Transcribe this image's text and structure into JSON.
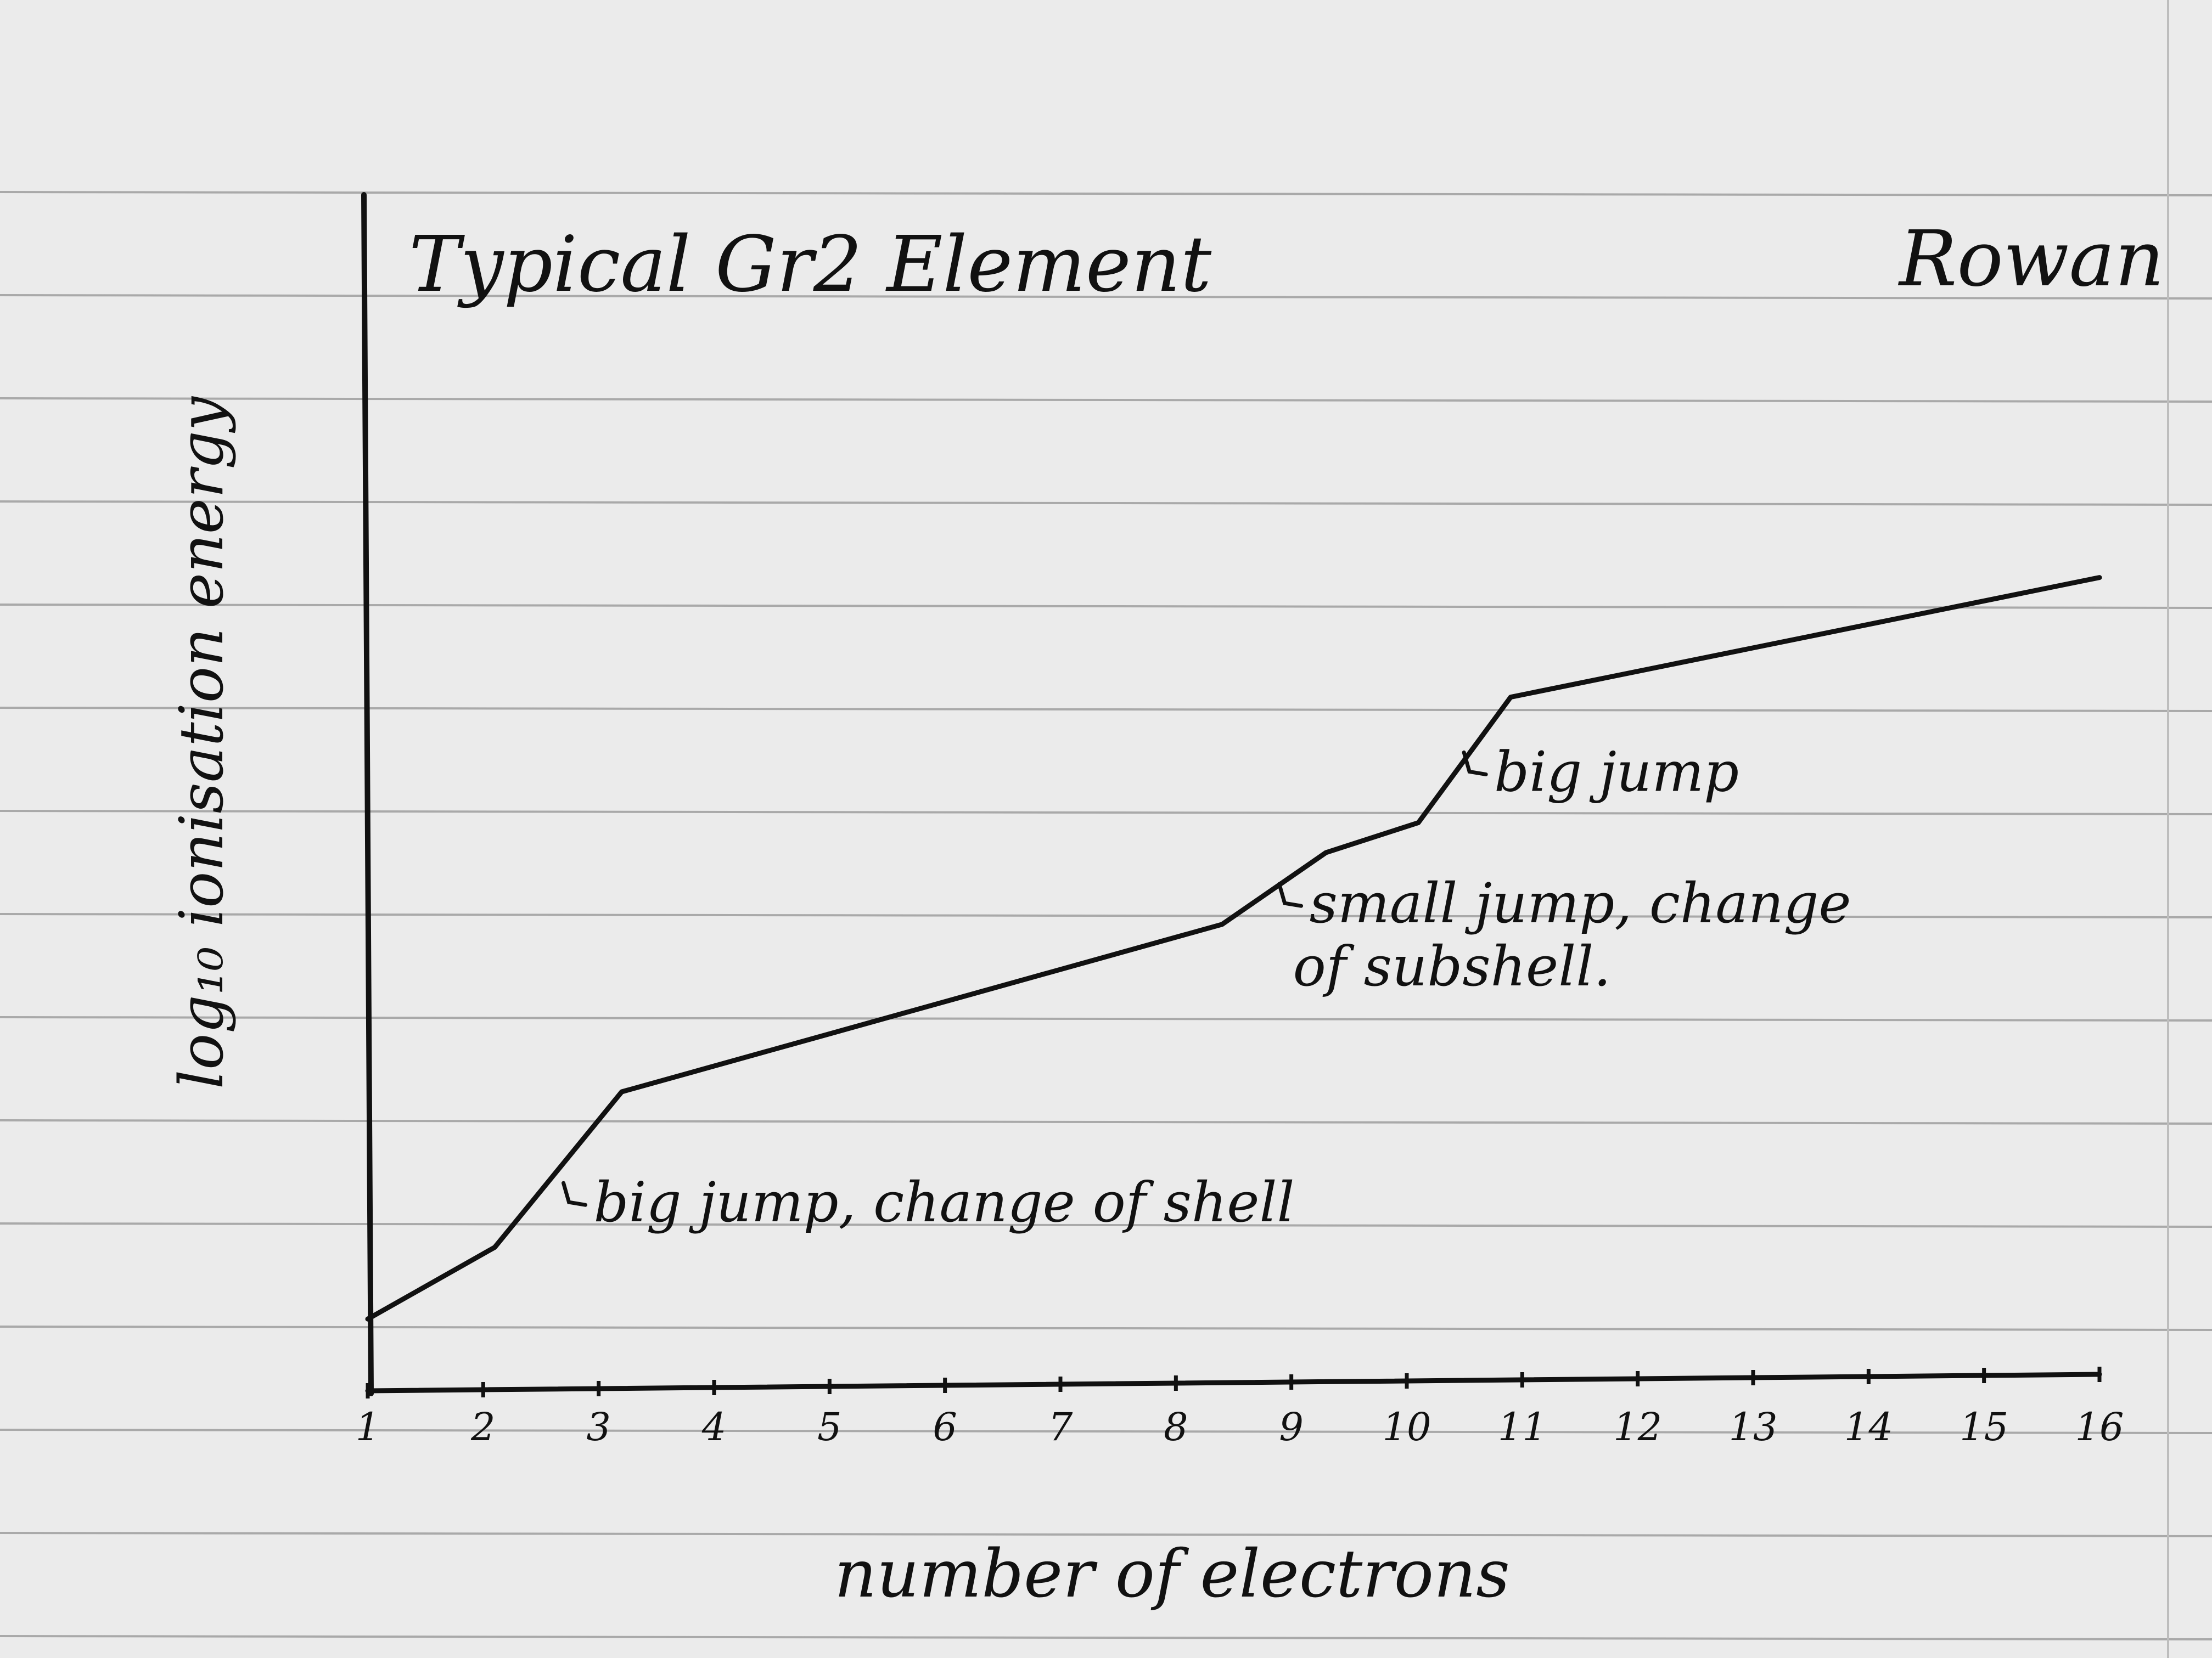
{
  "paper": {
    "background": "#ebebeb",
    "rule_color": "#a9a9a9",
    "ink_color": "#111111"
  },
  "chart_data": {
    "type": "line",
    "title": "Typical Gr2 Element",
    "author": "Rowan",
    "xlabel": "number of electrons",
    "ylabel": "log₁₀ ionisation energy",
    "x_ticks": [
      1,
      2,
      3,
      4,
      5,
      6,
      7,
      8,
      9,
      10,
      11,
      12,
      13,
      14,
      15,
      16
    ],
    "xlim": [
      1,
      16
    ],
    "ylim": [
      0,
      10
    ],
    "grid": false,
    "legend": "none",
    "series": [
      {
        "points": [
          [
            1,
            0.6
          ],
          [
            2.1,
            1.2
          ],
          [
            3.2,
            2.5
          ],
          [
            8.4,
            3.9
          ],
          [
            9.3,
            4.5
          ],
          [
            10.1,
            4.75
          ],
          [
            10.9,
            5.8
          ],
          [
            16,
            6.8
          ]
        ]
      }
    ],
    "annotations": [
      {
        "x": 2.6,
        "y": 1.6,
        "text": "big jump, change of shell"
      },
      {
        "x": 8.8,
        "y": 4.1,
        "text": "small jump, change",
        "text2": "of subshell."
      },
      {
        "x": 10.4,
        "y": 5.2,
        "text": "big jump"
      }
    ]
  }
}
